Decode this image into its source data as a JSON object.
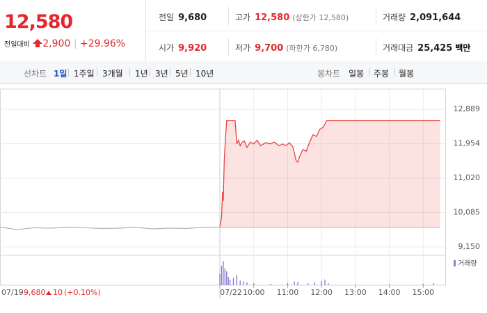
{
  "header": {
    "price": "12,580",
    "change_label": "전일대비",
    "change": "2,900",
    "change_rate": "+29.96%"
  },
  "stats": [
    {
      "label": "전일",
      "value": "9,680",
      "color": "#222"
    },
    {
      "label": "고가",
      "value": "12,580",
      "note": "(상한가 12,580)",
      "color": "#e5262c"
    },
    {
      "label": "거래량",
      "value": "2,091,644",
      "color": "#222"
    },
    {
      "label": "시가",
      "value": "9,920",
      "color": "#e5262c"
    },
    {
      "label": "저가",
      "value": "9,700",
      "note": "(하한가 6,780)",
      "color": "#e5262c"
    },
    {
      "label": "거래대금",
      "value": "25,425",
      "unit": "백만",
      "color": "#222"
    }
  ],
  "tabs": {
    "line_label": "선차트",
    "line_periods": [
      "1일",
      "1주일",
      "3개월",
      "1년",
      "3년",
      "5년",
      "10년"
    ],
    "active": 0,
    "candle_label": "봉차트",
    "candle_periods": [
      "일봉",
      "주봉",
      "월봉"
    ]
  },
  "chart_data": [
    {
      "type": "line",
      "x_label": "07/19",
      "x": [
        9,
        9.5,
        10,
        10.5,
        11,
        11.5,
        12,
        12.5,
        13,
        13.5,
        14,
        14.5,
        15,
        15.5
      ],
      "series": [
        {
          "color": "#b5b5b5",
          "values": [
            9690,
            9620,
            9670,
            9660,
            9680,
            9670,
            9650,
            9660,
            9680,
            9640,
            9660,
            9650,
            9680,
            9680
          ]
        }
      ],
      "xlim": [
        9,
        15.5
      ],
      "ylim": [
        8960,
        13440
      ],
      "annotation": {
        "price": "9,680",
        "change": "10",
        "rate": "(+0.10%)"
      }
    },
    {
      "type": "area",
      "x": [
        9,
        9.05,
        9.08,
        9.1,
        9.13,
        9.16,
        9.2,
        9.45,
        9.5,
        9.55,
        9.6,
        9.65,
        9.72,
        9.8,
        9.9,
        10,
        10.1,
        10.2,
        10.35,
        10.5,
        10.6,
        10.75,
        10.85,
        10.95,
        11.05,
        11.15,
        11.25,
        11.3,
        11.35,
        11.45,
        11.55,
        11.65,
        11.75,
        11.85,
        11.95,
        12.05,
        12.15,
        15.5
      ],
      "series": [
        {
          "color": "#e8413f",
          "values": [
            9700,
            9950,
            10650,
            10400,
            11500,
            12000,
            12580,
            12580,
            11950,
            12050,
            11900,
            11980,
            12030,
            11850,
            12000,
            11950,
            12050,
            11900,
            11980,
            11950,
            12000,
            11900,
            11950,
            11900,
            11980,
            11880,
            11500,
            11450,
            11600,
            11800,
            11750,
            12000,
            12200,
            12150,
            12350,
            12400,
            12580,
            12580
          ]
        }
      ],
      "fill_to": 9680,
      "xlim": [
        9,
        15.65
      ],
      "ylim": [
        8960,
        13440
      ],
      "xticks": [
        {
          "value": 9,
          "label": "07/22"
        },
        {
          "value": 10,
          "label": "10:00"
        },
        {
          "value": 11,
          "label": "11:00"
        },
        {
          "value": 12,
          "label": "12:00"
        },
        {
          "value": 13,
          "label": "13:00"
        },
        {
          "value": 14,
          "label": "14:00"
        },
        {
          "value": 15,
          "label": "15:00"
        }
      ],
      "yticks": [
        {
          "value": 12889,
          "label": "12,889"
        },
        {
          "value": 11954,
          "label": "11,954"
        },
        {
          "value": 11020,
          "label": "11,020"
        },
        {
          "value": 10085,
          "label": "10,085"
        },
        {
          "value": 9150,
          "label": "9,150"
        }
      ],
      "grid": true
    },
    {
      "type": "bar",
      "x": [
        9,
        9.05,
        9.1,
        9.15,
        9.2,
        9.25,
        9.3,
        9.4,
        9.5,
        9.6,
        9.7,
        9.8,
        10,
        10.5,
        11,
        11.2,
        11.3,
        11.6,
        11.8,
        12,
        12.1,
        12.2,
        13,
        14,
        15,
        15.3
      ],
      "series": [
        {
          "name": "거래량",
          "color": "#8a7fd0",
          "values": [
            120000,
            210000,
            260000,
            180000,
            150000,
            90000,
            60000,
            80000,
            110000,
            50000,
            40000,
            30000,
            20000,
            15000,
            25000,
            40000,
            35000,
            20000,
            30000,
            45000,
            60000,
            20000,
            8000,
            10000,
            15000,
            20000
          ]
        }
      ],
      "xlim": [
        9,
        15.65
      ],
      "ylim": [
        0,
        300000
      ]
    }
  ]
}
